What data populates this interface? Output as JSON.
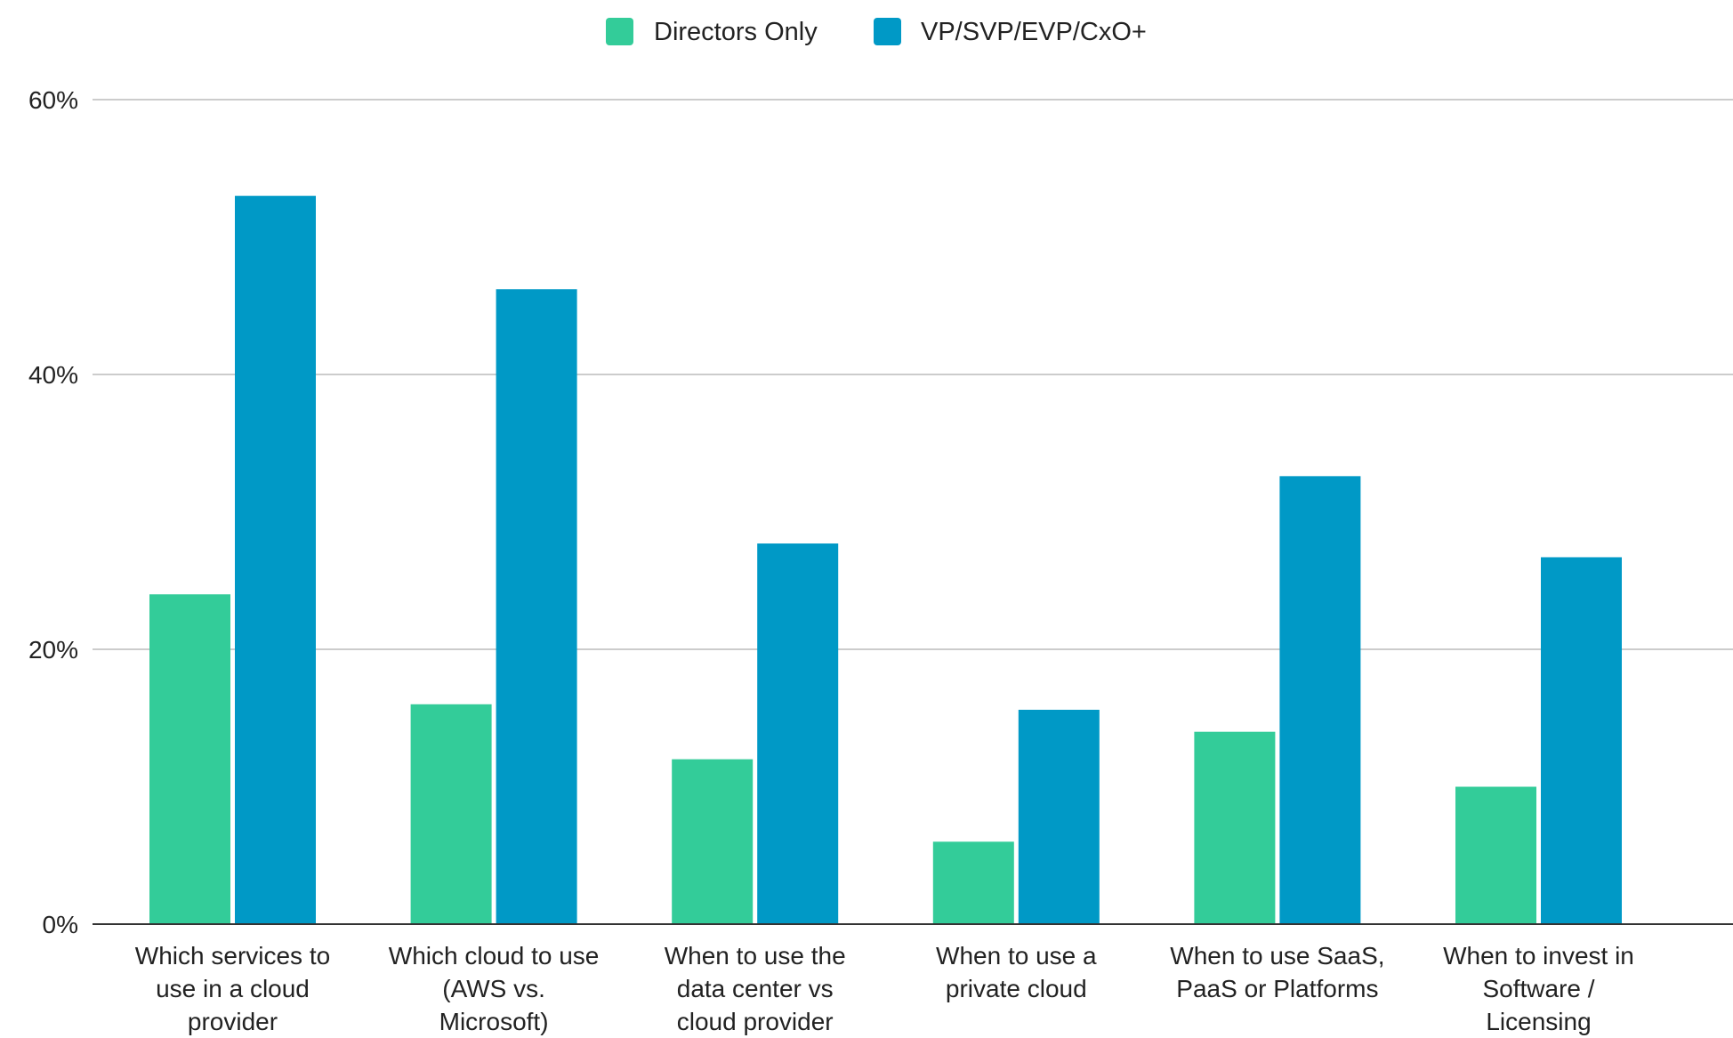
{
  "chart_data": {
    "type": "bar",
    "title": "",
    "xlabel": "",
    "ylabel": "",
    "categories": [
      [
        "Which services to",
        "use in a cloud",
        "provider"
      ],
      [
        "Which cloud to use",
        "(AWS vs.",
        "Microsoft)"
      ],
      [
        "When to use the",
        "data center vs",
        "cloud provider"
      ],
      [
        "When to use a",
        "private cloud"
      ],
      [
        "When to use SaaS,",
        "PaaS or Platforms"
      ],
      [
        "When to invest in",
        "Software /",
        "Licensing"
      ]
    ],
    "series": [
      {
        "name": "Directors Only",
        "color": "#33cc99",
        "values": [
          24,
          16,
          12,
          6,
          14,
          10
        ]
      },
      {
        "name": "VP/SVP/EVP/CxO+",
        "color": "#0099c6",
        "values": [
          53,
          46.2,
          27.7,
          15.6,
          32.6,
          26.7
        ]
      }
    ],
    "ylim": [
      0,
      60
    ],
    "yticks": [
      0,
      20,
      40,
      60
    ],
    "ytick_format": "percent",
    "grid": true,
    "legend_position": "top-center"
  }
}
